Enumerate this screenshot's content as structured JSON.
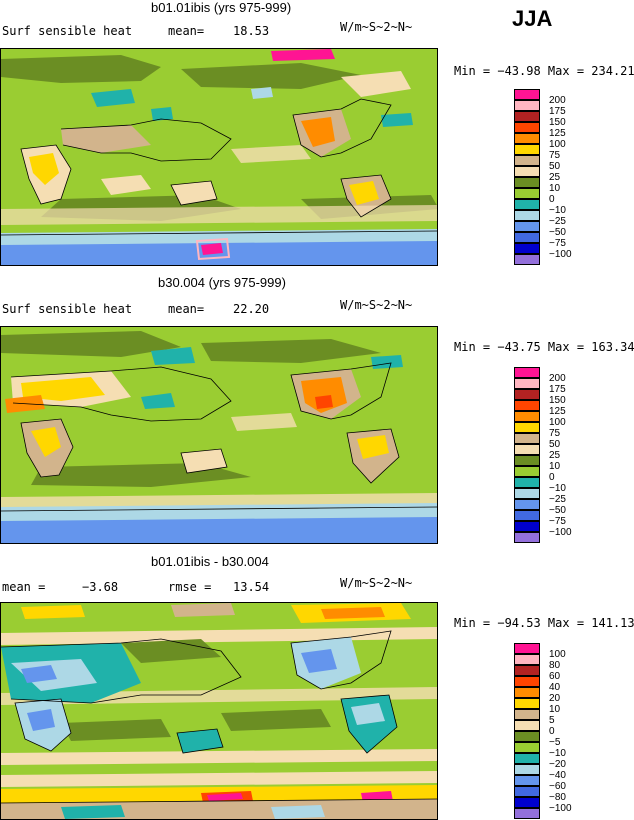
{
  "season": "JJA",
  "panels": [
    {
      "title": "b01.01ibis (yrs 975-999)",
      "left_label": "Surf sensible heat",
      "stat1_label": "mean=",
      "stat1_value": "18.53",
      "stat2_label": "",
      "stat2_value": "",
      "units": "W/m~S~2~N~",
      "min_max": "Min = −43.98 Max = 234.21",
      "legend": {
        "labels": [
          "200",
          "175",
          "150",
          "125",
          "100",
          "75",
          "50",
          "25",
          "10",
          "0",
          "−10",
          "−25",
          "−50",
          "−75",
          "−100"
        ],
        "colors": [
          "#ff1493",
          "#ffb6c1",
          "#b22222",
          "#ff4500",
          "#ff8c00",
          "#ffd700",
          "#d2b48c",
          "#f5deb3",
          "#6b8e23",
          "#9acd32",
          "#20b2aa",
          "#add8e6",
          "#6495ed",
          "#4169e1",
          "#0000cd",
          "#9370db"
        ]
      }
    },
    {
      "title": "b30.004 (yrs 975-999)",
      "left_label": "Surf sensible heat",
      "stat1_label": "mean=",
      "stat1_value": "22.20",
      "stat2_label": "",
      "stat2_value": "",
      "units": "W/m~S~2~N~",
      "min_max": "Min = −43.75 Max = 163.34",
      "legend": {
        "labels": [
          "200",
          "175",
          "150",
          "125",
          "100",
          "75",
          "50",
          "25",
          "10",
          "0",
          "−10",
          "−25",
          "−50",
          "−75",
          "−100"
        ],
        "colors": [
          "#ff1493",
          "#ffb6c1",
          "#b22222",
          "#ff4500",
          "#ff8c00",
          "#ffd700",
          "#d2b48c",
          "#f5deb3",
          "#6b8e23",
          "#9acd32",
          "#20b2aa",
          "#add8e6",
          "#6495ed",
          "#4169e1",
          "#0000cd",
          "#9370db"
        ]
      }
    },
    {
      "title": "b01.01ibis - b30.004",
      "left_label": "mean =",
      "stat1_label": "",
      "stat1_value": "−3.68",
      "stat2_label": "rmse =",
      "stat2_value": "13.54",
      "units": "W/m~S~2~N~",
      "min_max": "Min = −94.53 Max = 141.13",
      "legend": {
        "labels": [
          "100",
          "80",
          "60",
          "40",
          "20",
          "10",
          "5",
          "0",
          "−5",
          "−10",
          "−20",
          "−40",
          "−60",
          "−80",
          "−100"
        ],
        "colors": [
          "#ff1493",
          "#ffb6c1",
          "#b22222",
          "#ff4500",
          "#ff8c00",
          "#ffd700",
          "#d2b48c",
          "#f5deb3",
          "#6b8e23",
          "#9acd32",
          "#20b2aa",
          "#add8e6",
          "#6495ed",
          "#4169e1",
          "#0000cd",
          "#9370db"
        ]
      }
    }
  ]
}
